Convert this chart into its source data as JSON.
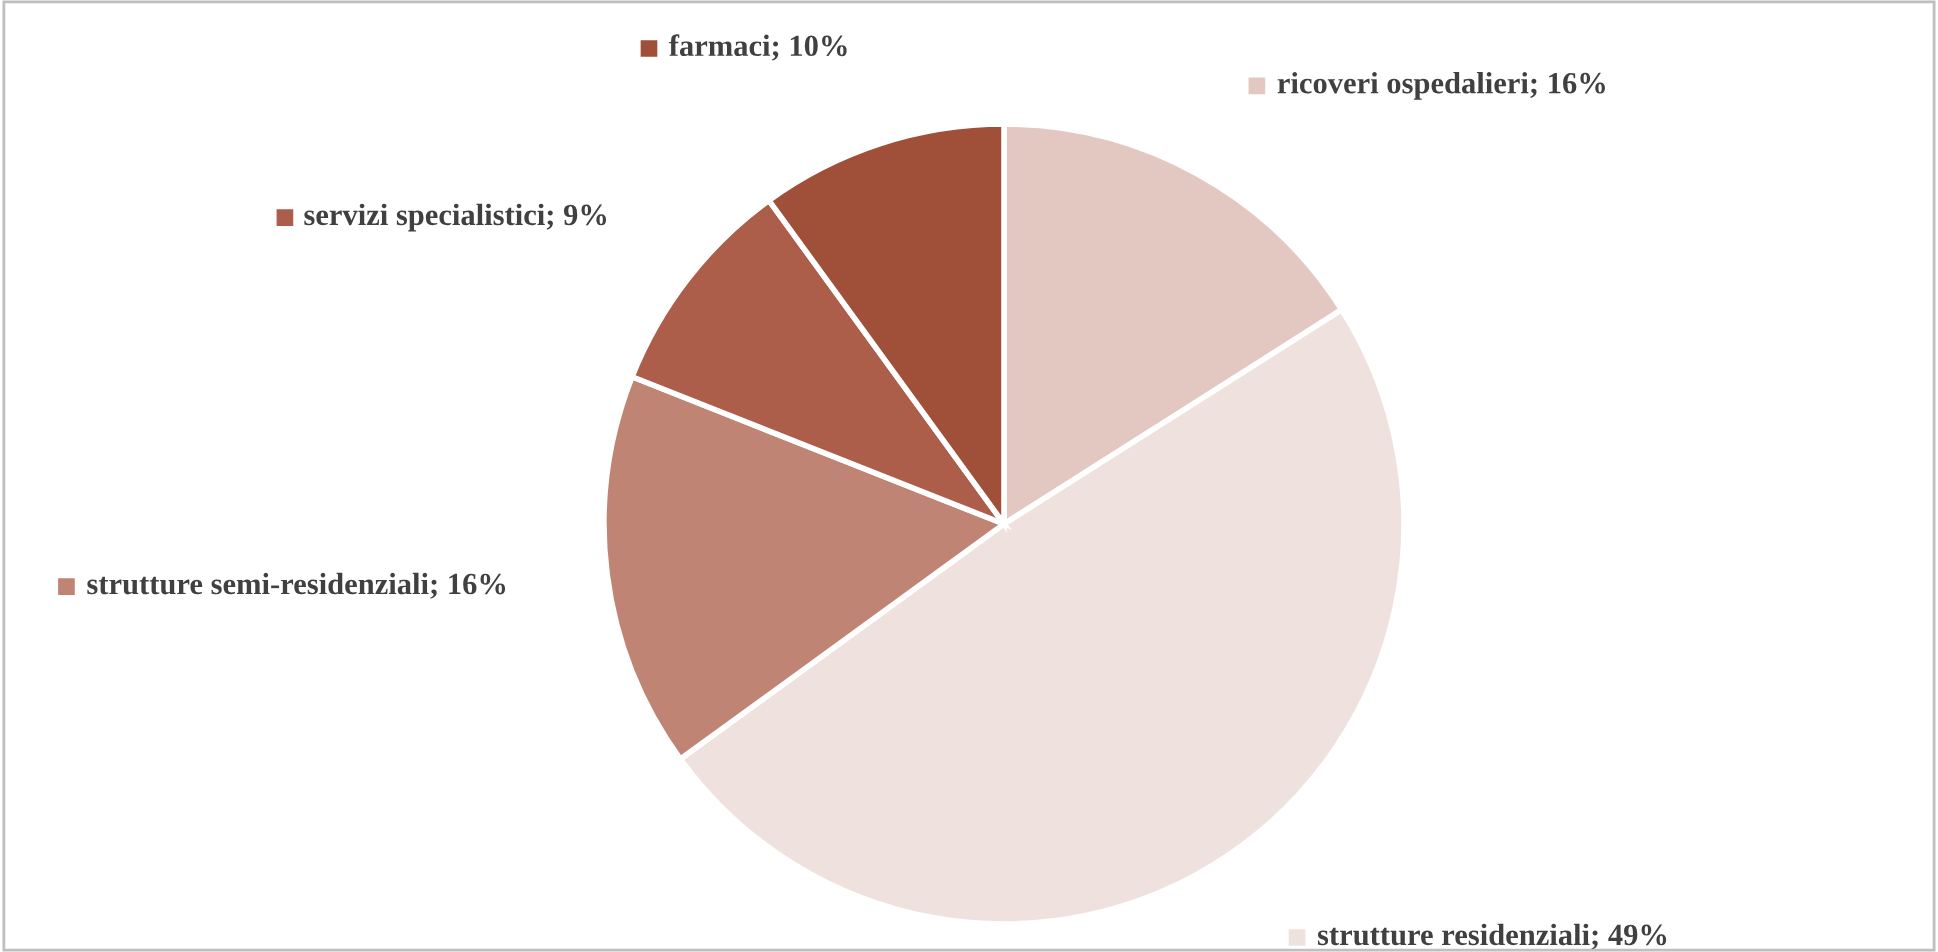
{
  "chart_data": {
    "type": "pie",
    "categories": [
      "ricoveri ospedalieri",
      "strutture residenziali",
      "strutture semi-residenziali",
      "servizi specialistici",
      "farmaci"
    ],
    "values": [
      16,
      49,
      16,
      9,
      10
    ],
    "value_labels": [
      "16%",
      "49%",
      "16%",
      "9%",
      "10%"
    ],
    "colors": [
      "#e3c8c2",
      "#efe2de",
      "#bf8474",
      "#ac5e4b",
      "#a04f39"
    ],
    "legend": "top"
  }
}
